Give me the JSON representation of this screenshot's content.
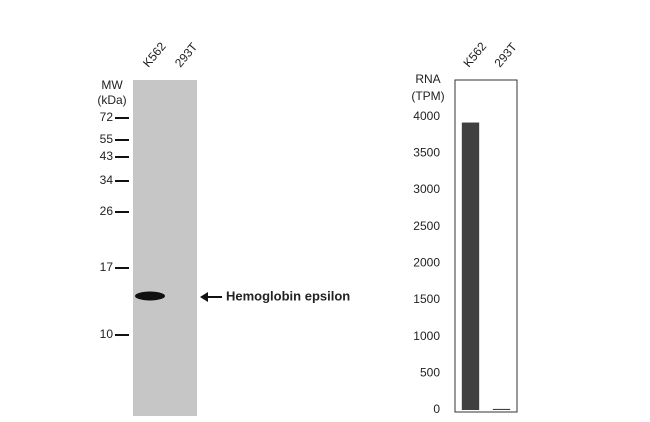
{
  "blot": {
    "mw_title": [
      "MW",
      "(kDa)"
    ],
    "lanes": [
      "K562",
      "293T"
    ],
    "markers": [
      72,
      55,
      43,
      34,
      26,
      17,
      10
    ],
    "band_label": "Hemoglobin epsilon"
  },
  "chart_data": {
    "type": "bar",
    "y_title": [
      "RNA",
      "(TPM)"
    ],
    "categories": [
      "K562",
      "293T"
    ],
    "values": [
      3920,
      15
    ],
    "color": "#404040",
    "ylim": [
      0,
      4500
    ],
    "yticks": [
      0,
      500,
      1000,
      1500,
      2000,
      2500,
      3000,
      3500,
      4000
    ]
  }
}
